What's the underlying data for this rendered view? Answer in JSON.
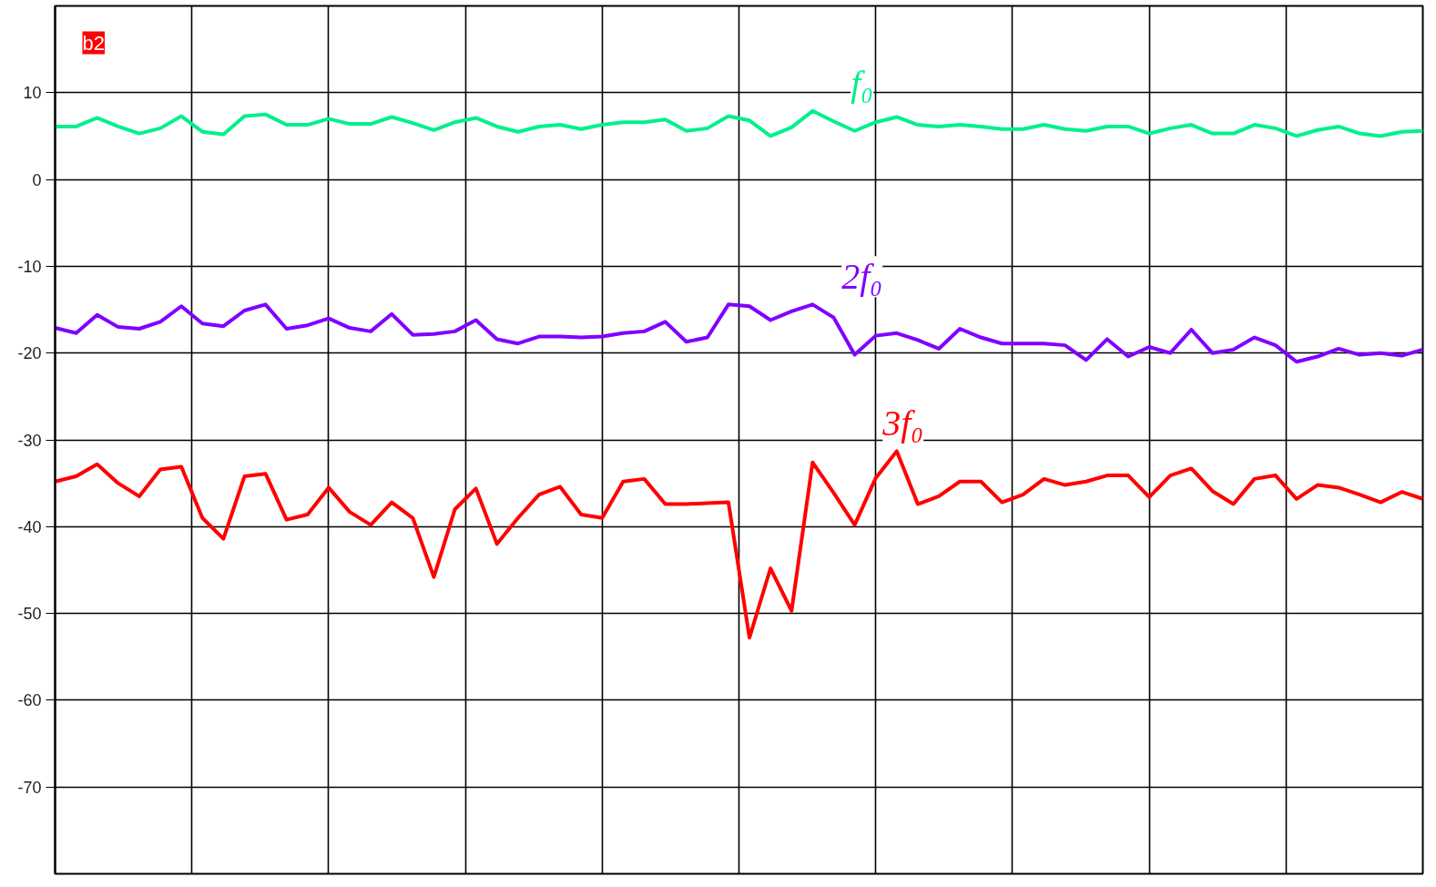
{
  "chart_data": {
    "type": "line",
    "categories": [
      null,
      null,
      null,
      null,
      null,
      null,
      null,
      null,
      null,
      null,
      null,
      null,
      null,
      null,
      null,
      null,
      null,
      null,
      null,
      null,
      null,
      null,
      null,
      null,
      null,
      null,
      null,
      null,
      null,
      null,
      null,
      null,
      null,
      null,
      null,
      null,
      null,
      null,
      null,
      null,
      null,
      null,
      null,
      null,
      null,
      null,
      null,
      null,
      null,
      null,
      null,
      null,
      null,
      null,
      null,
      null,
      null,
      null,
      null,
      null,
      null,
      null,
      null,
      null,
      null,
      null
    ],
    "series": [
      {
        "name": "f₀",
        "color": "#00f08c",
        "values": [
          6.1,
          6.1,
          7.1,
          6.1,
          5.3,
          5.9,
          7.3,
          5.5,
          5.2,
          7.3,
          7.5,
          6.3,
          6.3,
          7.0,
          6.4,
          6.4,
          7.2,
          6.5,
          5.7,
          6.6,
          7.1,
          6.1,
          5.5,
          6.1,
          6.3,
          5.8,
          6.3,
          6.6,
          6.6,
          6.9,
          5.6,
          5.9,
          7.3,
          6.8,
          5.0,
          6.0,
          7.9,
          6.7,
          5.6,
          6.6,
          7.2,
          6.3,
          6.1,
          6.3,
          6.1,
          5.8,
          5.8,
          6.3,
          5.8,
          5.6,
          6.1,
          6.1,
          5.3,
          5.9,
          6.3,
          5.3,
          5.3,
          6.3,
          5.9,
          5.0,
          5.7,
          6.1,
          5.3,
          5.0,
          5.5,
          5.6
        ]
      },
      {
        "name": "2f₀",
        "color": "#8000ff",
        "values": [
          -17.1,
          -17.7,
          -15.6,
          -17.0,
          -17.2,
          -16.4,
          -14.6,
          -16.6,
          -16.9,
          -15.1,
          -14.4,
          -17.2,
          -16.8,
          -16.0,
          -17.1,
          -17.5,
          -15.5,
          -17.9,
          -17.8,
          -17.5,
          -16.2,
          -18.4,
          -18.9,
          -18.1,
          -18.1,
          -18.2,
          -18.1,
          -17.7,
          -17.5,
          -16.4,
          -18.7,
          -18.2,
          -14.4,
          -14.6,
          -16.2,
          -15.2,
          -14.4,
          -15.9,
          -20.2,
          -18.0,
          -17.7,
          -18.5,
          -19.5,
          -17.2,
          -18.2,
          -18.9,
          -18.9,
          -18.9,
          -19.1,
          -20.8,
          -18.4,
          -20.4,
          -19.3,
          -20.0,
          -17.3,
          -20.0,
          -19.6,
          -18.2,
          -19.1,
          -21.0,
          -20.4,
          -19.5,
          -20.2,
          -20.0,
          -20.3,
          -19.6
        ]
      },
      {
        "name": "3f₀",
        "color": "#ff0000",
        "values": [
          -34.8,
          -34.2,
          -32.8,
          -35.0,
          -36.5,
          -33.4,
          -33.1,
          -39.0,
          -41.4,
          -34.2,
          -33.9,
          -39.2,
          -38.6,
          -35.5,
          -38.3,
          -39.8,
          -37.2,
          -39.0,
          -45.8,
          -38.0,
          -35.6,
          -42.0,
          -39.0,
          -36.3,
          -35.4,
          -38.6,
          -39.0,
          -34.8,
          -34.5,
          -37.4,
          -37.4,
          -37.3,
          -37.2,
          -52.8,
          -44.8,
          -49.7,
          -32.6,
          -36.1,
          -39.8,
          -34.4,
          -31.3,
          -37.4,
          -36.5,
          -34.8,
          -34.8,
          -37.2,
          -36.3,
          -34.5,
          -35.2,
          -34.8,
          -34.1,
          -34.1,
          -36.6,
          -34.1,
          -33.3,
          -35.9,
          -37.4,
          -34.5,
          -34.1,
          -36.8,
          -35.2,
          -35.5,
          -36.3,
          -37.2,
          -36.0,
          -36.8
        ]
      }
    ],
    "ylim": [
      -80,
      20
    ],
    "yticks": [
      10,
      0,
      -10,
      -20,
      -30,
      -40,
      -50,
      -60,
      -70
    ],
    "tick_labels": "y",
    "grid": true,
    "line_style": "solid",
    "annotations": [
      "b2"
    ]
  }
}
